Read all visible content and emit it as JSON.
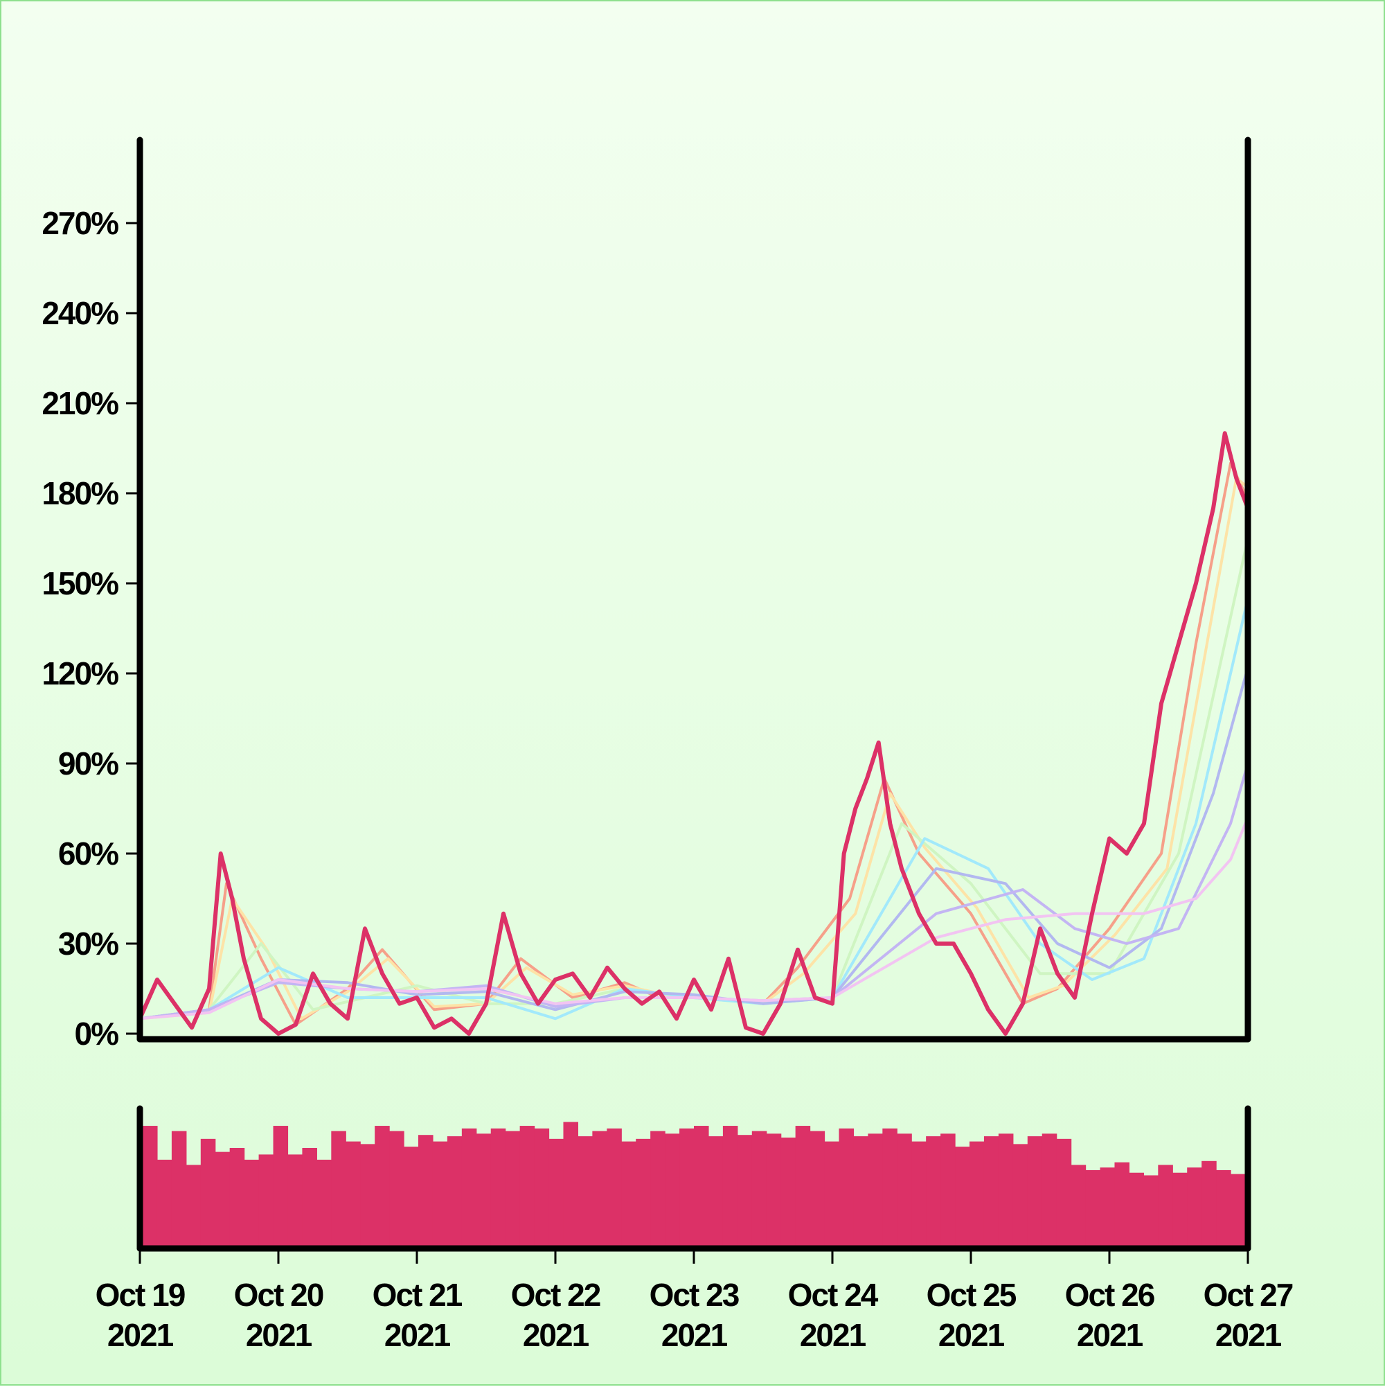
{
  "chart_data": [
    {
      "type": "line",
      "title": "",
      "xlabel": "",
      "ylabel": "",
      "y_unit": "%",
      "ylim": [
        0,
        300
      ],
      "yticks": [
        0,
        30,
        60,
        90,
        120,
        150,
        180,
        210,
        240,
        270
      ],
      "ytick_labels": [
        "0%",
        "30%",
        "60%",
        "90%",
        "120%",
        "150%",
        "180%",
        "210%",
        "240%",
        "270%"
      ],
      "xlim": [
        "2021-10-19",
        "2021-10-27"
      ],
      "grid": false,
      "legend": "none",
      "main_series": {
        "color": "#dc3167",
        "x": [
          "2021-10-19T00:00",
          "2021-10-19T03:00",
          "2021-10-19T06:00",
          "2021-10-19T09:00",
          "2021-10-19T12:00",
          "2021-10-19T14:00",
          "2021-10-19T16:00",
          "2021-10-19T18:00",
          "2021-10-19T21:00",
          "2021-10-20T00:00",
          "2021-10-20T03:00",
          "2021-10-20T06:00",
          "2021-10-20T09:00",
          "2021-10-20T12:00",
          "2021-10-20T15:00",
          "2021-10-20T18:00",
          "2021-10-20T21:00",
          "2021-10-21T00:00",
          "2021-10-21T03:00",
          "2021-10-21T06:00",
          "2021-10-21T09:00",
          "2021-10-21T12:00",
          "2021-10-21T15:00",
          "2021-10-21T18:00",
          "2021-10-21T21:00",
          "2021-10-22T00:00",
          "2021-10-22T03:00",
          "2021-10-22T06:00",
          "2021-10-22T09:00",
          "2021-10-22T12:00",
          "2021-10-22T15:00",
          "2021-10-22T18:00",
          "2021-10-22T21:00",
          "2021-10-23T00:00",
          "2021-10-23T03:00",
          "2021-10-23T06:00",
          "2021-10-23T09:00",
          "2021-10-23T12:00",
          "2021-10-23T15:00",
          "2021-10-23T18:00",
          "2021-10-23T21:00",
          "2021-10-24T00:00",
          "2021-10-24T02:00",
          "2021-10-24T04:00",
          "2021-10-24T06:00",
          "2021-10-24T08:00",
          "2021-10-24T10:00",
          "2021-10-24T12:00",
          "2021-10-24T15:00",
          "2021-10-24T18:00",
          "2021-10-24T21:00",
          "2021-10-25T00:00",
          "2021-10-25T03:00",
          "2021-10-25T06:00",
          "2021-10-25T09:00",
          "2021-10-25T12:00",
          "2021-10-25T15:00",
          "2021-10-25T18:00",
          "2021-10-25T21:00",
          "2021-10-26T00:00",
          "2021-10-26T03:00",
          "2021-10-26T06:00",
          "2021-10-26T09:00",
          "2021-10-26T12:00",
          "2021-10-26T15:00",
          "2021-10-26T18:00",
          "2021-10-26T20:00",
          "2021-10-26T22:00",
          "2021-10-27T00:00"
        ],
        "values": [
          5,
          18,
          10,
          2,
          15,
          60,
          45,
          25,
          5,
          0,
          3,
          20,
          10,
          5,
          35,
          20,
          10,
          12,
          2,
          5,
          0,
          10,
          40,
          20,
          10,
          18,
          20,
          12,
          22,
          15,
          10,
          14,
          5,
          18,
          8,
          25,
          2,
          0,
          10,
          28,
          12,
          10,
          60,
          75,
          85,
          97,
          70,
          55,
          40,
          30,
          30,
          20,
          8,
          0,
          10,
          35,
          20,
          12,
          40,
          65,
          60,
          70,
          110,
          130,
          150,
          175,
          200,
          185,
          175
        ]
      },
      "smoothed_series": [
        {
          "color": "#f6a089",
          "x": [
            "2021-10-19T00:00",
            "2021-10-19T12:00",
            "2021-10-19T15:00",
            "2021-10-19T21:00",
            "2021-10-20T03:00",
            "2021-10-20T12:00",
            "2021-10-20T18:00",
            "2021-10-21T03:00",
            "2021-10-21T12:00",
            "2021-10-21T18:00",
            "2021-10-22T03:00",
            "2021-10-22T12:00",
            "2021-10-22T18:00",
            "2021-10-23T03:00",
            "2021-10-23T12:00",
            "2021-10-23T18:00",
            "2021-10-24T03:00",
            "2021-10-24T09:00",
            "2021-10-24T15:00",
            "2021-10-25T00:00",
            "2021-10-25T09:00",
            "2021-10-25T15:00",
            "2021-10-26T00:00",
            "2021-10-26T09:00",
            "2021-10-26T15:00",
            "2021-10-26T21:00",
            "2021-10-27T00:00"
          ],
          "values": [
            5,
            8,
            50,
            25,
            3,
            15,
            28,
            8,
            10,
            25,
            12,
            17,
            12,
            12,
            10,
            22,
            45,
            85,
            60,
            40,
            10,
            15,
            35,
            60,
            130,
            190,
            178
          ]
        },
        {
          "color": "#fde3a7",
          "x": [
            "2021-10-19T00:00",
            "2021-10-19T12:00",
            "2021-10-19T16:00",
            "2021-10-19T22:00",
            "2021-10-20T04:00",
            "2021-10-20T12:00",
            "2021-10-20T19:00",
            "2021-10-21T03:00",
            "2021-10-21T12:00",
            "2021-10-21T19:00",
            "2021-10-22T03:00",
            "2021-10-22T12:00",
            "2021-10-22T19:00",
            "2021-10-23T03:00",
            "2021-10-23T12:00",
            "2021-10-23T19:00",
            "2021-10-24T04:00",
            "2021-10-24T10:00",
            "2021-10-24T16:00",
            "2021-10-25T01:00",
            "2021-10-25T10:00",
            "2021-10-25T16:00",
            "2021-10-26T01:00",
            "2021-10-26T10:00",
            "2021-10-26T16:00",
            "2021-10-26T22:00",
            "2021-10-27T00:00"
          ],
          "values": [
            5,
            7,
            45,
            28,
            5,
            14,
            25,
            9,
            10,
            22,
            13,
            16,
            13,
            12,
            10,
            20,
            40,
            80,
            62,
            42,
            12,
            16,
            33,
            55,
            120,
            185,
            182
          ]
        },
        {
          "color": "#cff5c2",
          "x": [
            "2021-10-19T00:00",
            "2021-10-19T12:00",
            "2021-10-19T21:00",
            "2021-10-20T06:00",
            "2021-10-20T15:00",
            "2021-10-21T00:00",
            "2021-10-21T12:00",
            "2021-10-22T00:00",
            "2021-10-22T12:00",
            "2021-10-23T00:00",
            "2021-10-23T12:00",
            "2021-10-24T00:00",
            "2021-10-24T12:00",
            "2021-10-25T00:00",
            "2021-10-25T12:00",
            "2021-10-26T00:00",
            "2021-10-26T12:00",
            "2021-10-27T00:00"
          ],
          "values": [
            5,
            8,
            30,
            8,
            12,
            16,
            10,
            10,
            15,
            12,
            10,
            12,
            70,
            50,
            20,
            20,
            60,
            165
          ]
        },
        {
          "color": "#a2e9fb",
          "x": [
            "2021-10-19T00:00",
            "2021-10-19T12:00",
            "2021-10-20T00:00",
            "2021-10-20T12:00",
            "2021-10-21T00:00",
            "2021-10-21T12:00",
            "2021-10-22T00:00",
            "2021-10-22T12:00",
            "2021-10-23T00:00",
            "2021-10-23T12:00",
            "2021-10-24T00:00",
            "2021-10-24T16:00",
            "2021-10-25T03:00",
            "2021-10-25T12:00",
            "2021-10-25T21:00",
            "2021-10-26T06:00",
            "2021-10-26T15:00",
            "2021-10-27T00:00"
          ],
          "values": [
            5,
            8,
            22,
            12,
            12,
            12,
            5,
            15,
            12,
            10,
            12,
            65,
            55,
            30,
            18,
            25,
            70,
            145
          ]
        },
        {
          "color": "#b2b8f0",
          "x": [
            "2021-10-19T00:00",
            "2021-10-19T12:00",
            "2021-10-20T00:00",
            "2021-10-20T12:00",
            "2021-10-21T00:00",
            "2021-10-21T12:00",
            "2021-10-22T00:00",
            "2021-10-22T12:00",
            "2021-10-23T00:00",
            "2021-10-23T12:00",
            "2021-10-24T00:00",
            "2021-10-24T18:00",
            "2021-10-25T06:00",
            "2021-10-25T15:00",
            "2021-10-26T00:00",
            "2021-10-26T09:00",
            "2021-10-26T18:00",
            "2021-10-27T00:00"
          ],
          "values": [
            5,
            8,
            18,
            17,
            13,
            14,
            8,
            14,
            13,
            10,
            12,
            55,
            50,
            30,
            22,
            35,
            80,
            122
          ]
        },
        {
          "color": "#c3b5f3",
          "x": [
            "2021-10-19T00:00",
            "2021-10-19T12:00",
            "2021-10-20T00:00",
            "2021-10-20T12:00",
            "2021-10-21T00:00",
            "2021-10-21T12:00",
            "2021-10-22T00:00",
            "2021-10-22T12:00",
            "2021-10-23T00:00",
            "2021-10-23T12:00",
            "2021-10-24T00:00",
            "2021-10-24T18:00",
            "2021-10-25T09:00",
            "2021-10-25T18:00",
            "2021-10-26T03:00",
            "2021-10-26T12:00",
            "2021-10-26T21:00",
            "2021-10-27T00:00"
          ],
          "values": [
            5,
            8,
            17,
            15,
            14,
            16,
            9,
            12,
            12,
            11,
            12,
            40,
            48,
            35,
            30,
            35,
            70,
            90
          ]
        },
        {
          "color": "#f2c4f2",
          "x": [
            "2021-10-19T00:00",
            "2021-10-19T12:00",
            "2021-10-20T00:00",
            "2021-10-20T12:00",
            "2021-10-21T00:00",
            "2021-10-21T12:00",
            "2021-10-22T00:00",
            "2021-10-22T12:00",
            "2021-10-23T00:00",
            "2021-10-23T12:00",
            "2021-10-24T00:00",
            "2021-10-24T18:00",
            "2021-10-25T06:00",
            "2021-10-25T18:00",
            "2021-10-26T06:00",
            "2021-10-26T15:00",
            "2021-10-26T21:00",
            "2021-10-27T00:00"
          ],
          "values": [
            5,
            7,
            18,
            15,
            14,
            15,
            10,
            12,
            12,
            11,
            12,
            32,
            38,
            40,
            40,
            45,
            58,
            72
          ]
        }
      ]
    },
    {
      "type": "bar",
      "title": "",
      "color": "#dc3167",
      "xlim": [
        "2021-10-19",
        "2021-10-27"
      ],
      "xticks": [
        "2021-10-19",
        "2021-10-20",
        "2021-10-21",
        "2021-10-22",
        "2021-10-23",
        "2021-10-24",
        "2021-10-25",
        "2021-10-26",
        "2021-10-27"
      ],
      "xtick_labels": [
        [
          "Oct 19",
          "2021"
        ],
        [
          "Oct 20",
          "2021"
        ],
        [
          "Oct 21",
          "2021"
        ],
        [
          "Oct 22",
          "2021"
        ],
        [
          "Oct 23",
          "2021"
        ],
        [
          "Oct 24",
          "2021"
        ],
        [
          "Oct 25",
          "2021"
        ],
        [
          "Oct 26",
          "2021"
        ],
        [
          "Oct 27",
          "2021"
        ]
      ],
      "bar_interval_hours": 3,
      "ylim": [
        0,
        1
      ],
      "values": [
        0.92,
        0.66,
        0.88,
        0.62,
        0.82,
        0.72,
        0.75,
        0.66,
        0.7,
        0.92,
        0.7,
        0.75,
        0.66,
        0.88,
        0.8,
        0.78,
        0.92,
        0.88,
        0.76,
        0.85,
        0.8,
        0.84,
        0.9,
        0.86,
        0.9,
        0.88,
        0.92,
        0.9,
        0.82,
        0.95,
        0.84,
        0.88,
        0.9,
        0.8,
        0.82,
        0.88,
        0.86,
        0.9,
        0.92,
        0.84,
        0.92,
        0.85,
        0.88,
        0.86,
        0.83,
        0.92,
        0.88,
        0.8,
        0.9,
        0.84,
        0.86,
        0.9,
        0.86,
        0.8,
        0.84,
        0.86,
        0.76,
        0.8,
        0.84,
        0.86,
        0.78,
        0.84,
        0.86,
        0.82,
        0.62,
        0.58,
        0.6,
        0.64,
        0.56,
        0.54,
        0.62,
        0.56,
        0.6,
        0.65,
        0.58,
        0.55
      ]
    }
  ]
}
